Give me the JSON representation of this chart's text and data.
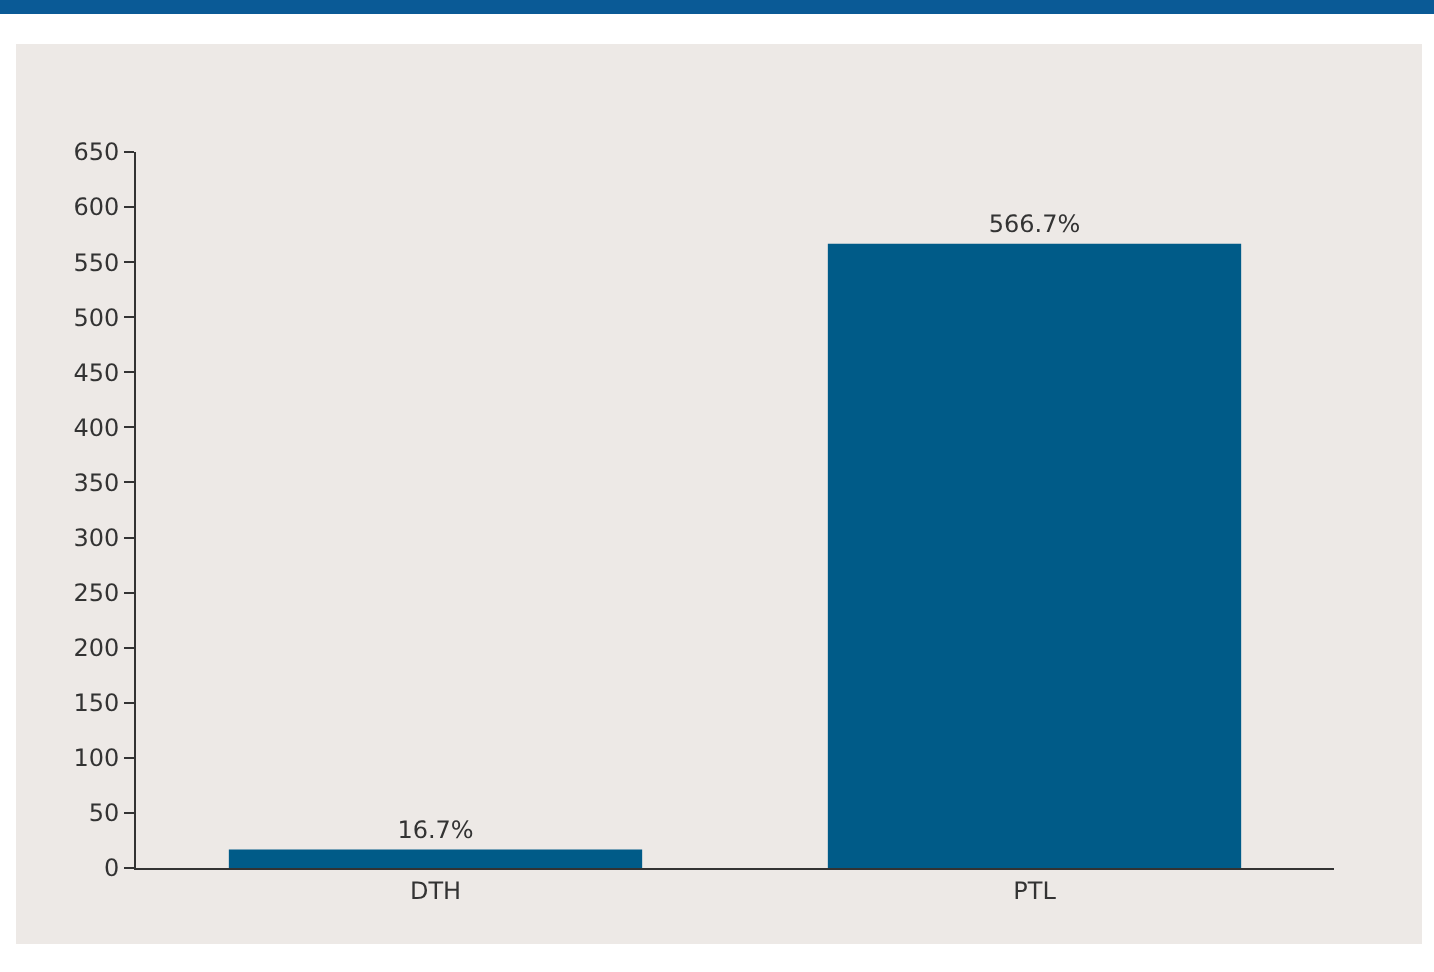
{
  "chart_data": {
    "type": "bar",
    "categories": [
      "DTH",
      "PTL"
    ],
    "values": [
      16.7,
      566.7
    ],
    "value_labels": [
      "16.7%",
      "566.7%"
    ],
    "color": "#005b88",
    "ylim": [
      0,
      650
    ],
    "yticks": [
      0,
      50,
      100,
      150,
      200,
      250,
      300,
      350,
      400,
      450,
      500,
      550,
      600,
      650
    ],
    "grid": false,
    "legend": false
  }
}
